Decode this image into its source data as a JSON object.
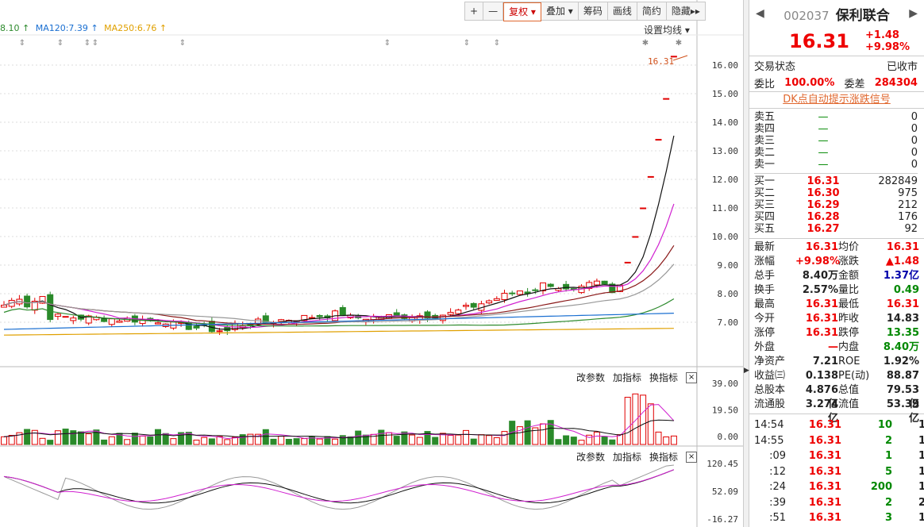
{
  "toolbar": {
    "items": [
      "+",
      "—",
      "复权",
      "叠加",
      "筹码",
      "画线",
      "简约",
      "隐藏"
    ],
    "fuquan_arrow": "▾",
    "diejia_arrow": "▾",
    "hide_arrow": "▸▸"
  },
  "ma_legend": [
    {
      "label": "8.10",
      "arrow": "↑",
      "color": "#2e8b2e"
    },
    {
      "label": "MA120:7.39",
      "arrow": "↑",
      "color": "#1a6fd1"
    },
    {
      "label": "MA250:6.76",
      "arrow": "↑",
      "color": "#e0a000"
    }
  ],
  "ma_settings": "设置均线 ▾",
  "price_axis": [
    "16.00",
    "15.00",
    "14.00",
    "13.00",
    "12.00",
    "11.00",
    "10.00",
    "9.00",
    "8.00",
    "7.00"
  ],
  "last_price_label": "16.31",
  "vol_axis": [
    "39.00",
    "19.50",
    "0.00"
  ],
  "ind_axis": [
    "120.45",
    "52.09",
    "-16.27"
  ],
  "sub_buttons": [
    "改参数",
    "加指标",
    "换指标"
  ],
  "close_symbol": "×",
  "stock": {
    "code": "002037",
    "name": "保利联合",
    "price": "16.31",
    "change": "+1.48",
    "change_pct": "+9.98%"
  },
  "status": {
    "label": "交易状态",
    "value": "已收市"
  },
  "weibi": {
    "label": "委比",
    "value": "100.00%",
    "label2": "委差",
    "value2": "284304"
  },
  "dk_link": "DK点自动提示涨跌信号",
  "sell_orders": [
    {
      "label": "卖五",
      "price": "—",
      "vol": "0"
    },
    {
      "label": "卖四",
      "price": "—",
      "vol": "0"
    },
    {
      "label": "卖三",
      "price": "—",
      "vol": "0"
    },
    {
      "label": "卖二",
      "price": "—",
      "vol": "0"
    },
    {
      "label": "卖一",
      "price": "—",
      "vol": "0"
    }
  ],
  "buy_orders": [
    {
      "label": "买一",
      "price": "16.31",
      "vol": "282849"
    },
    {
      "label": "买二",
      "price": "16.30",
      "vol": "975"
    },
    {
      "label": "买三",
      "price": "16.29",
      "vol": "212"
    },
    {
      "label": "买四",
      "price": "16.28",
      "vol": "176"
    },
    {
      "label": "买五",
      "price": "16.27",
      "vol": "92"
    }
  ],
  "quote": [
    {
      "l1": "最新",
      "v1": "16.31",
      "c1": "red",
      "l2": "均价",
      "v2": "16.31",
      "c2": "red"
    },
    {
      "l1": "涨幅",
      "v1": "+9.98%",
      "c1": "red",
      "l2": "涨跌",
      "v2": "▲1.48",
      "c2": "red"
    },
    {
      "l1": "总手",
      "v1": "8.40万",
      "c1": "",
      "l2": "金额",
      "v2": "1.37亿",
      "c2": "blue"
    },
    {
      "l1": "换手",
      "v1": "2.57%",
      "c1": "",
      "l2": "量比",
      "v2": "0.49",
      "c2": "green"
    },
    {
      "l1": "最高",
      "v1": "16.31",
      "c1": "red",
      "l2": "最低",
      "v2": "16.31",
      "c2": "red"
    },
    {
      "l1": "今开",
      "v1": "16.31",
      "c1": "red",
      "l2": "昨收",
      "v2": "14.83",
      "c2": ""
    },
    {
      "l1": "涨停",
      "v1": "16.31",
      "c1": "red",
      "l2": "跌停",
      "v2": "13.35",
      "c2": "green"
    },
    {
      "l1": "外盘",
      "v1": "—",
      "c1": "red",
      "l2": "内盘",
      "v2": "8.40万",
      "c2": "green"
    },
    {
      "l1": "净资产",
      "v1": "7.21",
      "c1": "",
      "l2": "ROE",
      "v2": "1.92%",
      "c2": ""
    },
    {
      "l1": "收益㈢",
      "v1": "0.138",
      "c1": "",
      "l2": "PE(动)",
      "v2": "88.87",
      "c2": ""
    },
    {
      "l1": "总股本",
      "v1": "4.876亿",
      "c1": "",
      "l2": "总值",
      "v2": "79.53亿",
      "c2": ""
    },
    {
      "l1": "流通股",
      "v1": "3.274亿",
      "c1": "",
      "l2": "流值",
      "v2": "53.39亿",
      "c2": ""
    }
  ],
  "ticks": [
    {
      "time": "14:54",
      "price": "16.31",
      "vol": "10",
      "count": "1"
    },
    {
      "time": "14:55",
      "price": "16.31",
      "vol": "2",
      "count": "1"
    },
    {
      "time": ":09",
      "price": "16.31",
      "vol": "1",
      "count": "1"
    },
    {
      "time": ":12",
      "price": "16.31",
      "vol": "5",
      "count": "1"
    },
    {
      "time": ":24",
      "price": "16.31",
      "vol": "200",
      "count": "1"
    },
    {
      "time": ":39",
      "price": "16.31",
      "vol": "2",
      "count": "2"
    },
    {
      "time": ":51",
      "price": "16.31",
      "vol": "3",
      "count": "1"
    }
  ],
  "colors": {
    "up": "#e00000",
    "down": "#2a8a2a",
    "panel_red": "#e00000"
  }
}
